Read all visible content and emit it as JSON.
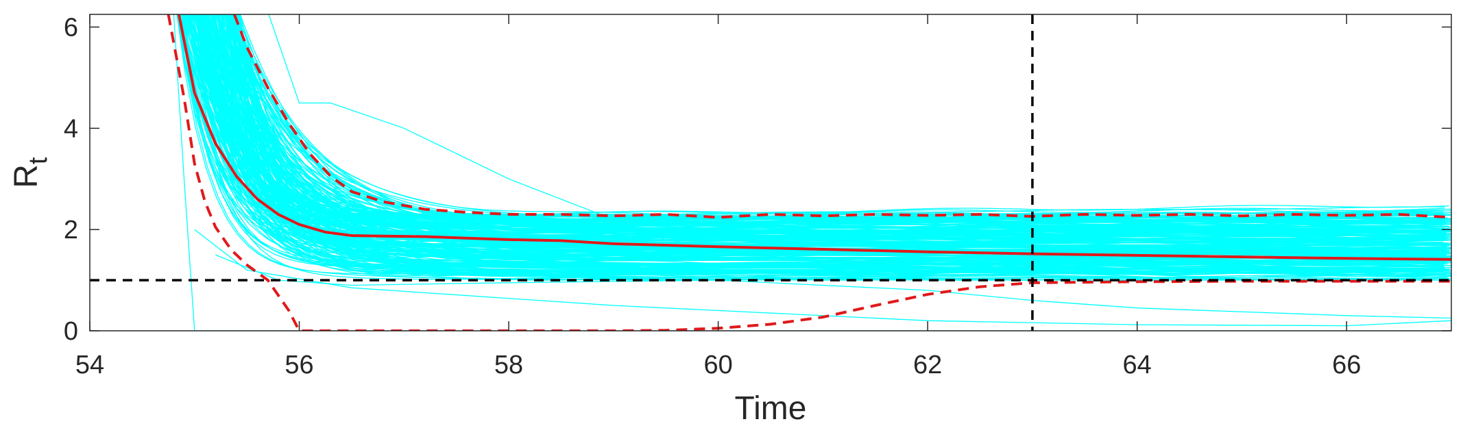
{
  "chart_data": {
    "type": "line",
    "title": "",
    "xlabel": "Time",
    "ylabel_main": "R",
    "ylabel_sub": "t",
    "xlim": [
      54,
      67
    ],
    "ylim": [
      0,
      6.25
    ],
    "x_ticks": [
      54,
      56,
      58,
      60,
      62,
      64,
      66
    ],
    "y_ticks": [
      0,
      2,
      4,
      6
    ],
    "grid": false,
    "legend": "none",
    "colors": {
      "ensemble": "#00FFFF",
      "median": "#E0191B",
      "bounds": "#E0191B",
      "reference": "#000000",
      "axes": "#262626"
    },
    "series": [
      {
        "style": "solid-red",
        "x": [
          54.85,
          55.0,
          55.2,
          55.4,
          55.6,
          55.8,
          56.0,
          56.25,
          56.5,
          56.8,
          57.2,
          57.6,
          58.0,
          58.5,
          59.0,
          60.0,
          61.0,
          62.0,
          63.0,
          64.0,
          65.0,
          66.0,
          67.0
        ],
        "y": [
          6.25,
          4.7,
          3.7,
          3.05,
          2.6,
          2.3,
          2.1,
          1.95,
          1.88,
          1.87,
          1.86,
          1.83,
          1.8,
          1.78,
          1.72,
          1.66,
          1.61,
          1.56,
          1.52,
          1.49,
          1.46,
          1.43,
          1.41
        ]
      },
      {
        "style": "dashed-red-upper",
        "x": [
          55.38,
          55.5,
          55.7,
          55.9,
          56.1,
          56.3,
          56.5,
          56.8,
          57.2,
          57.6,
          58.0,
          58.5,
          59.0,
          59.5,
          60.0,
          60.5,
          61.0,
          61.5,
          62.0,
          62.5,
          63.0,
          63.5,
          64.0,
          64.5,
          65.0,
          65.5,
          66.0,
          66.5,
          67.0
        ],
        "y": [
          6.25,
          5.6,
          4.8,
          4.1,
          3.5,
          3.05,
          2.75,
          2.55,
          2.4,
          2.34,
          2.3,
          2.3,
          2.27,
          2.3,
          2.24,
          2.3,
          2.27,
          2.3,
          2.28,
          2.3,
          2.26,
          2.3,
          2.28,
          2.3,
          2.27,
          2.3,
          2.28,
          2.3,
          2.24
        ]
      },
      {
        "style": "dashed-red-lower",
        "x": [
          54.75,
          54.9,
          55.0,
          55.1,
          55.2,
          55.35,
          55.5,
          55.7,
          55.9,
          56.0,
          57.0,
          58.0,
          59.0,
          59.5,
          60.0,
          60.5,
          61.0,
          61.5,
          62.0,
          62.5,
          63.0,
          64.0,
          65.0,
          66.0,
          67.0
        ],
        "y": [
          6.25,
          4.6,
          3.3,
          2.55,
          2.05,
          1.6,
          1.3,
          1.0,
          0.4,
          0.0,
          0.0,
          0.0,
          0.0,
          0.01,
          0.05,
          0.13,
          0.27,
          0.5,
          0.72,
          0.87,
          0.95,
          0.97,
          0.98,
          0.98,
          0.98
        ]
      }
    ],
    "reference_lines": {
      "horizontal_y": 1,
      "vertical_x": 63
    }
  }
}
